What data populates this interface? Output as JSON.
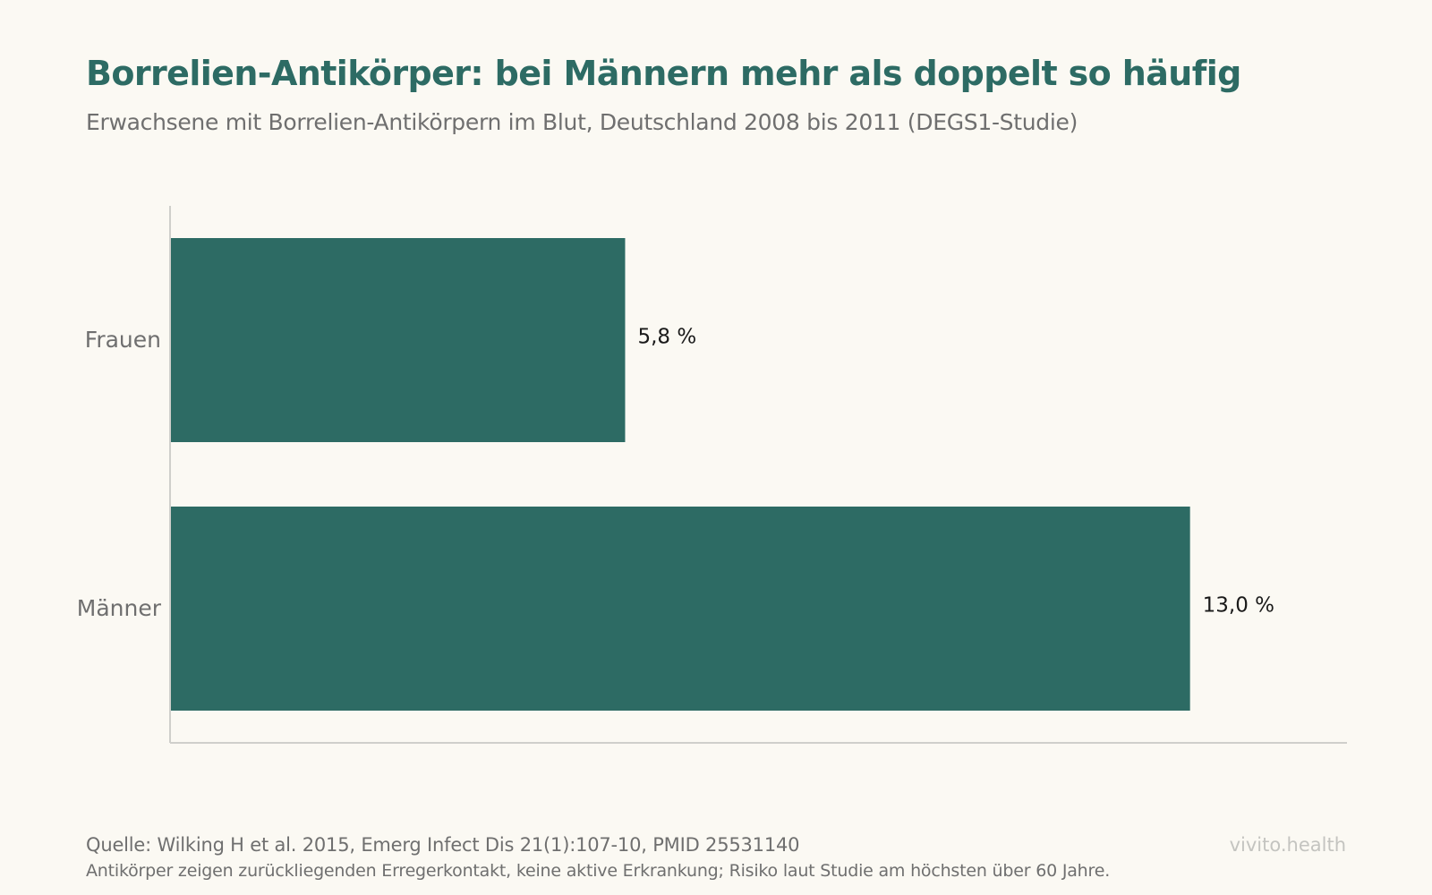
{
  "colors": {
    "bar": "#2d6b64",
    "title": "#2d6b64",
    "muted_text": "#6f6f6f",
    "axis": "#cfcfcb",
    "value_label": "#1a1a1a",
    "brand": "#c4c4c0"
  },
  "header": {
    "title": "Borrelien-Antikörper: bei Männern mehr als doppelt so häufig",
    "subtitle": "Erwachsene mit Borrelien-Antikörpern im Blut, Deutschland 2008 bis 2011 (DEGS1-Studie)"
  },
  "chart_data": {
    "type": "bar",
    "orientation": "horizontal",
    "categories": [
      "Frauen",
      "Männer"
    ],
    "values": [
      5.8,
      13.0
    ],
    "value_labels": [
      "5,8 %",
      "13,0 %"
    ],
    "unit": "%",
    "xlim": [
      0,
      15
    ],
    "grid": false,
    "legend": "none"
  },
  "footer": {
    "source": "Quelle: Wilking H et al. 2015, Emerg Infect Dis 21(1):107-10, PMID 25531140",
    "note": "Antikörper zeigen zurückliegenden Erregerkontakt, keine aktive Erkrankung; Risiko laut Studie am höchsten über 60 Jahre.",
    "brand": "vivito.health"
  }
}
